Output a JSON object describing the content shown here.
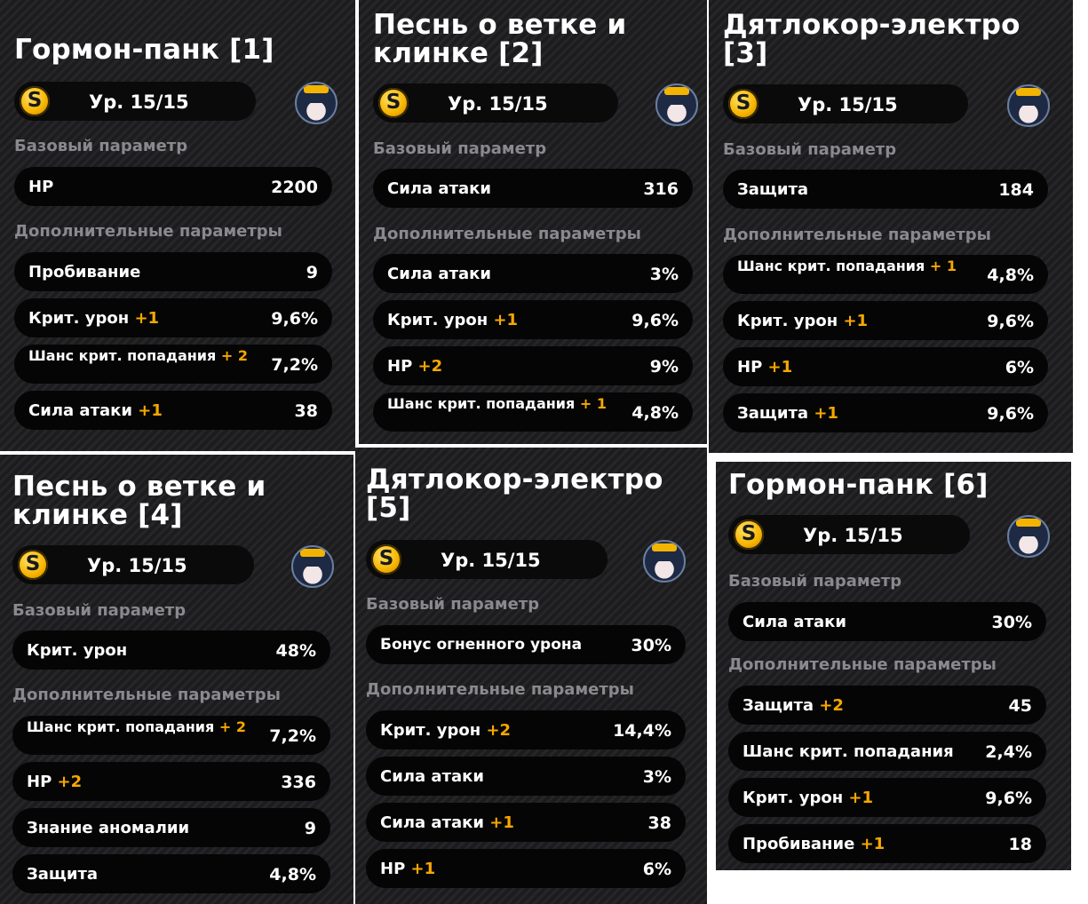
{
  "cards": [
    {
      "title": "Гормон-панк [1]",
      "level": "Ур. 15/15",
      "rank_badge": "S",
      "base_section": "Базовый параметр",
      "base_stat": {
        "name": "HP",
        "value": "2200"
      },
      "sub_section": "Дополнительные параметры",
      "sub_stats": [
        {
          "name": "Пробивание",
          "plus": "",
          "value": "9"
        },
        {
          "name": "Крит. урон",
          "plus": "+1",
          "value": "9,6%"
        },
        {
          "name": "Шанс крит. попадания",
          "plus": "+ 2",
          "value": "7,2%"
        },
        {
          "name": "Сила атаки",
          "plus": "+1",
          "value": "38"
        }
      ]
    },
    {
      "title": "Песнь о ветке и клинке [2]",
      "level": "Ур. 15/15",
      "rank_badge": "S",
      "base_section": "Базовый параметр",
      "base_stat": {
        "name": "Сила атаки",
        "value": "316"
      },
      "sub_section": "Дополнительные параметры",
      "sub_stats": [
        {
          "name": "Сила атаки",
          "plus": "",
          "value": "3%"
        },
        {
          "name": "Крит. урон",
          "plus": "+1",
          "value": "9,6%"
        },
        {
          "name": "HP",
          "plus": "+2",
          "value": "9%"
        },
        {
          "name": "Шанс крит. попадания",
          "plus": "+ 1",
          "value": "4,8%"
        }
      ]
    },
    {
      "title": "Дятлокор-электро [3]",
      "level": "Ур. 15/15",
      "rank_badge": "S",
      "base_section": "Базовый параметр",
      "base_stat": {
        "name": "Защита",
        "value": "184"
      },
      "sub_section": "Дополнительные параметры",
      "sub_stats": [
        {
          "name": "Шанс крит. попадания",
          "plus": "+ 1",
          "value": "4,8%"
        },
        {
          "name": "Крит. урон",
          "plus": "+1",
          "value": "9,6%"
        },
        {
          "name": "HP",
          "plus": "+1",
          "value": "6%"
        },
        {
          "name": "Защита",
          "plus": "+1",
          "value": "9,6%"
        }
      ]
    },
    {
      "title": "Песнь о ветке и клинке [4]",
      "level": "Ур. 15/15",
      "rank_badge": "S",
      "base_section": "Базовый параметр",
      "base_stat": {
        "name": "Крит. урон",
        "value": "48%"
      },
      "sub_section": "Дополнительные параметры",
      "sub_stats": [
        {
          "name": "Шанс крит. попадания",
          "plus": "+ 2",
          "value": "7,2%"
        },
        {
          "name": "HP",
          "plus": "+2",
          "value": "336"
        },
        {
          "name": "Знание аномалии",
          "plus": "",
          "value": "9"
        },
        {
          "name": "Защита",
          "plus": "",
          "value": "4,8%"
        }
      ]
    },
    {
      "title": "Дятлокор-электро [5]",
      "level": "Ур. 15/15",
      "rank_badge": "S",
      "base_section": "Базовый параметр",
      "base_stat": {
        "name": "Бонус огненного урона",
        "value": "30%"
      },
      "sub_section": "Дополнительные параметры",
      "sub_stats": [
        {
          "name": "Крит. урон",
          "plus": "+2",
          "value": "14,4%"
        },
        {
          "name": "Сила атаки",
          "plus": "",
          "value": "3%"
        },
        {
          "name": "Сила атаки",
          "plus": "+1",
          "value": "38"
        },
        {
          "name": "HP",
          "plus": "+1",
          "value": "6%"
        }
      ]
    },
    {
      "title": "Гормон-панк [6]",
      "level": "Ур. 15/15",
      "rank_badge": "S",
      "base_section": "Базовый параметр",
      "base_stat": {
        "name": "Сила атаки",
        "value": "30%"
      },
      "sub_section": "Дополнительные параметры",
      "sub_stats": [
        {
          "name": "Защита",
          "plus": "+2",
          "value": "45"
        },
        {
          "name": "Шанс крит. попадания",
          "plus": "",
          "value": "2,4%"
        },
        {
          "name": "Крит. урон",
          "plus": "+1",
          "value": "9,6%"
        },
        {
          "name": "Пробивание",
          "plus": "+1",
          "value": "18"
        }
      ]
    }
  ]
}
